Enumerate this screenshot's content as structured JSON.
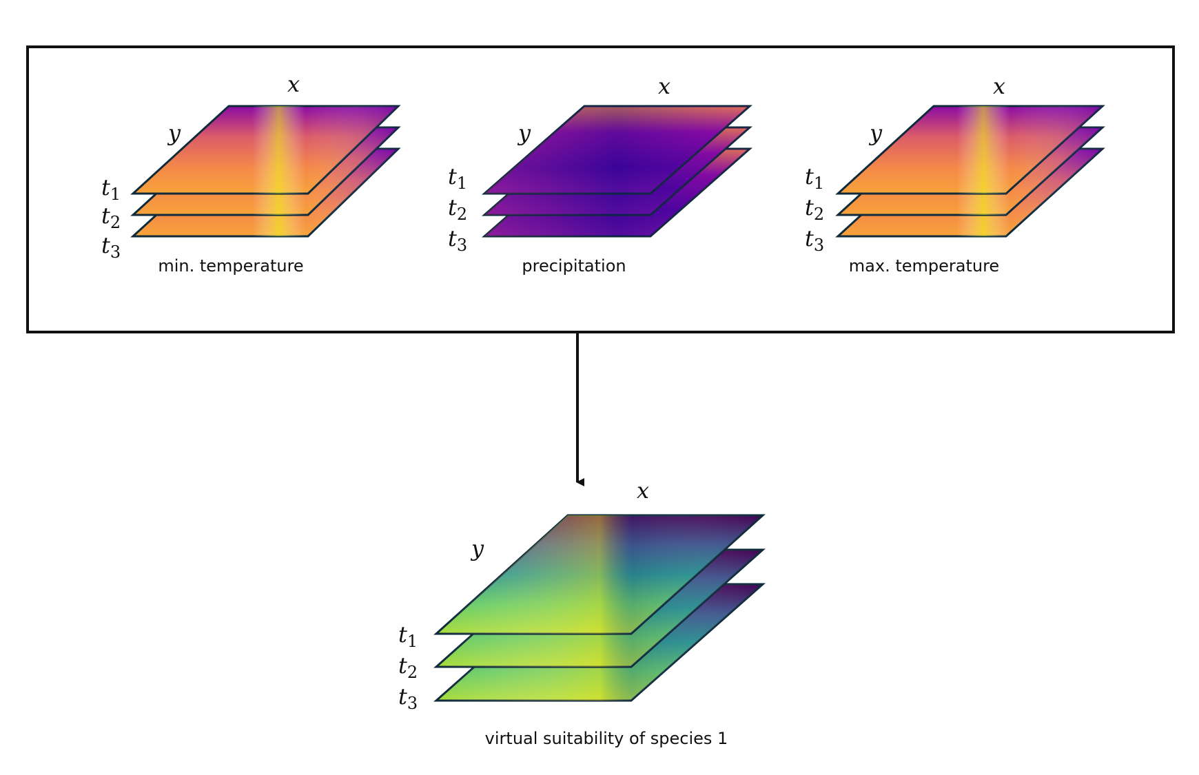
{
  "colors": {
    "border": "#111111",
    "plasma": [
      "#0d0887",
      "#5302a3",
      "#8b0aa5",
      "#b83289",
      "#db5c68",
      "#f48849",
      "#febd2a",
      "#f0f921"
    ],
    "viridis": [
      "#440154",
      "#3b528b",
      "#21918c",
      "#5ec962",
      "#bddf26",
      "#fde725"
    ]
  },
  "inputs": {
    "min_temperature": {
      "label": "min. temperature",
      "axis_x": "x",
      "axis_y": "y",
      "times": [
        {
          "base": "t",
          "sub": "1"
        },
        {
          "base": "t",
          "sub": "2"
        },
        {
          "base": "t",
          "sub": "3"
        }
      ],
      "colormap": "plasma-warm"
    },
    "precipitation": {
      "label": "precipitation",
      "axis_x": "x",
      "axis_y": "y",
      "times": [
        {
          "base": "t",
          "sub": "1"
        },
        {
          "base": "t",
          "sub": "2"
        },
        {
          "base": "t",
          "sub": "3"
        }
      ],
      "colormap": "plasma-cool"
    },
    "max_temperature": {
      "label": "max. temperature",
      "axis_x": "x",
      "axis_y": "y",
      "times": [
        {
          "base": "t",
          "sub": "1"
        },
        {
          "base": "t",
          "sub": "2"
        },
        {
          "base": "t",
          "sub": "3"
        }
      ],
      "colormap": "plasma-warm"
    }
  },
  "output": {
    "label": "virtual suitability of species 1",
    "axis_x": "x",
    "axis_y": "y",
    "times": [
      {
        "base": "t",
        "sub": "1"
      },
      {
        "base": "t",
        "sub": "2"
      },
      {
        "base": "t",
        "sub": "3"
      }
    ],
    "colormap": "viridis"
  },
  "icons": {
    "arrow": "arrow-down-icon"
  }
}
